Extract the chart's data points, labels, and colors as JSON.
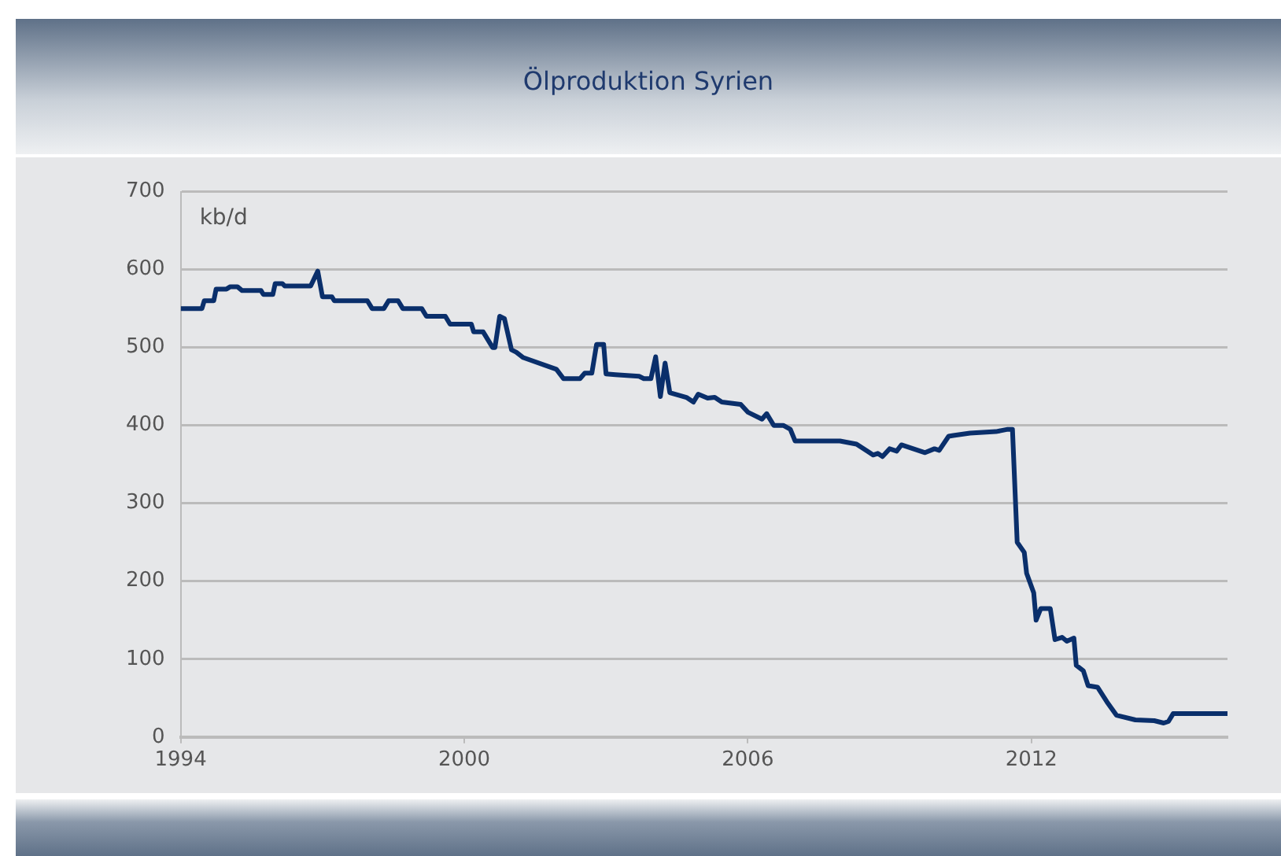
{
  "chart_data": {
    "type": "line",
    "title": "Ölproduktion Syrien",
    "ylabel": "kb/d",
    "x": [
      1994,
      1994.45,
      1994.5,
      1994.7,
      1994.75,
      1994.97,
      1995.05,
      1995.2,
      1995.3,
      1995.7,
      1995.75,
      1995.95,
      1996.0,
      1996.15,
      1996.2,
      1996.75,
      1996.9,
      1997.0,
      1997.2,
      1997.25,
      1997.95,
      1998.05,
      1998.3,
      1998.4,
      1998.6,
      1998.7,
      1999.1,
      1999.2,
      1999.6,
      1999.7,
      2000.15,
      2000.2,
      2000.4,
      2000.6,
      2000.65,
      2000.75,
      2000.85,
      2001.0,
      2001.1,
      2001.25,
      2001.95,
      2002.1,
      2002.45,
      2002.55,
      2002.7,
      2002.8,
      2002.95,
      2003.0,
      2003.2,
      2003.7,
      2003.8,
      2003.95,
      2004.05,
      2004.15,
      2004.25,
      2004.35,
      2004.7,
      2004.85,
      2004.95,
      2005.15,
      2005.3,
      2005.45,
      2005.85,
      2006.0,
      2006.3,
      2006.4,
      2006.55,
      2006.75,
      2006.9,
      2007.0,
      2007.95,
      2008.3,
      2008.55,
      2008.65,
      2008.75,
      2008.85,
      2009.0,
      2009.15,
      2009.25,
      2009.75,
      2009.95,
      2010.05,
      2010.25,
      2010.35,
      2010.7,
      2011.25,
      2011.5,
      2011.6,
      2011.7,
      2011.85,
      2011.9,
      2012.05,
      2012.1,
      2012.2,
      2012.4,
      2012.5,
      2012.65,
      2012.75,
      2012.9,
      2012.95,
      2013.1,
      2013.2,
      2013.4,
      2013.6,
      2013.8,
      2014.2,
      2014.6,
      2014.8,
      2014.9,
      2015.0,
      2016.15
    ],
    "series": [
      {
        "color": "#0a2f6b",
        "values": [
          550,
          550,
          560,
          560,
          575,
          575,
          578,
          578,
          573,
          573,
          568,
          568,
          582,
          582,
          579,
          579,
          598,
          565,
          565,
          560,
          560,
          550,
          550,
          560,
          560,
          550,
          550,
          540,
          540,
          530,
          530,
          520,
          520,
          500,
          500,
          540,
          537,
          497,
          494,
          487,
          472,
          460,
          460,
          467,
          467,
          504,
          504,
          466,
          465,
          463,
          460,
          460,
          488,
          437,
          480,
          442,
          436,
          430,
          440,
          435,
          436,
          430,
          427,
          417,
          408,
          415,
          400,
          400,
          395,
          380,
          380,
          376,
          366,
          362,
          364,
          360,
          370,
          367,
          375,
          365,
          370,
          368,
          386,
          387,
          390,
          392,
          395,
          395,
          250,
          237,
          210,
          185,
          150,
          165,
          165,
          125,
          128,
          123,
          127,
          92,
          85,
          66,
          64,
          45,
          28,
          22,
          21,
          18,
          20,
          30,
          30
        ]
      }
    ],
    "xlim": [
      1994,
      2016.15
    ],
    "xticks": [
      1994,
      2000,
      2006,
      2012
    ],
    "ylim": [
      0,
      700
    ],
    "yticks": [
      0,
      100,
      200,
      300,
      400,
      500,
      600,
      700
    ],
    "grid": "y",
    "legend": false,
    "marker": "none",
    "line_style": "solid"
  }
}
